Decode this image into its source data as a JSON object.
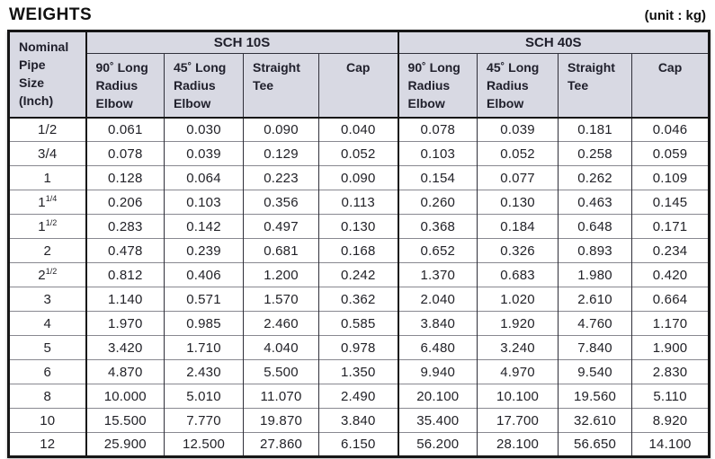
{
  "header": {
    "title": "WEIGHTS",
    "unit": "(unit : kg)"
  },
  "colors": {
    "header_bg": "#d8d9e3",
    "outer_border": "#161616",
    "cell_line": "#30303a",
    "row_line": "#888890",
    "text": "#1c1c24"
  },
  "table": {
    "corner_header": "Nominal\nPipe\nSize\n(Inch)",
    "groups": [
      "SCH 10S",
      "SCH 40S"
    ],
    "columns": [
      "90˚ Long\nRadius\nElbow",
      "45˚ Long\nRadius\nElbow",
      "Straight\nTee",
      "Cap",
      "90˚ Long\nRadius\nElbow",
      "45˚ Long\nRadius\nElbow",
      "Straight\nTee",
      "Cap"
    ],
    "rows": [
      {
        "size": "1/2",
        "size_sup": "",
        "values": [
          "0.061",
          "0.030",
          "0.090",
          "0.040",
          "0.078",
          "0.039",
          "0.181",
          "0.046"
        ]
      },
      {
        "size": "3/4",
        "size_sup": "",
        "values": [
          "0.078",
          "0.039",
          "0.129",
          "0.052",
          "0.103",
          "0.052",
          "0.258",
          "0.059"
        ]
      },
      {
        "size": "1",
        "size_sup": "",
        "values": [
          "0.128",
          "0.064",
          "0.223",
          "0.090",
          "0.154",
          "0.077",
          "0.262",
          "0.109"
        ]
      },
      {
        "size": "1",
        "size_sup": "1/4",
        "values": [
          "0.206",
          "0.103",
          "0.356",
          "0.113",
          "0.260",
          "0.130",
          "0.463",
          "0.145"
        ]
      },
      {
        "size": "1",
        "size_sup": "1/2",
        "values": [
          "0.283",
          "0.142",
          "0.497",
          "0.130",
          "0.368",
          "0.184",
          "0.648",
          "0.171"
        ]
      },
      {
        "size": "2",
        "size_sup": "",
        "values": [
          "0.478",
          "0.239",
          "0.681",
          "0.168",
          "0.652",
          "0.326",
          "0.893",
          "0.234"
        ]
      },
      {
        "size": "2",
        "size_sup": "1/2",
        "values": [
          "0.812",
          "0.406",
          "1.200",
          "0.242",
          "1.370",
          "0.683",
          "1.980",
          "0.420"
        ]
      },
      {
        "size": "3",
        "size_sup": "",
        "values": [
          "1.140",
          "0.571",
          "1.570",
          "0.362",
          "2.040",
          "1.020",
          "2.610",
          "0.664"
        ]
      },
      {
        "size": "4",
        "size_sup": "",
        "values": [
          "1.970",
          "0.985",
          "2.460",
          "0.585",
          "3.840",
          "1.920",
          "4.760",
          "1.170"
        ]
      },
      {
        "size": "5",
        "size_sup": "",
        "values": [
          "3.420",
          "1.710",
          "4.040",
          "0.978",
          "6.480",
          "3.240",
          "7.840",
          "1.900"
        ]
      },
      {
        "size": "6",
        "size_sup": "",
        "values": [
          "4.870",
          "2.430",
          "5.500",
          "1.350",
          "9.940",
          "4.970",
          "9.540",
          "2.830"
        ]
      },
      {
        "size": "8",
        "size_sup": "",
        "values": [
          "10.000",
          "5.010",
          "11.070",
          "2.490",
          "20.100",
          "10.100",
          "19.560",
          "5.110"
        ]
      },
      {
        "size": "10",
        "size_sup": "",
        "values": [
          "15.500",
          "7.770",
          "19.870",
          "3.840",
          "35.400",
          "17.700",
          "32.610",
          "8.920"
        ]
      },
      {
        "size": "12",
        "size_sup": "",
        "values": [
          "25.900",
          "12.500",
          "27.860",
          "6.150",
          "56.200",
          "28.100",
          "56.650",
          "14.100"
        ]
      }
    ]
  }
}
